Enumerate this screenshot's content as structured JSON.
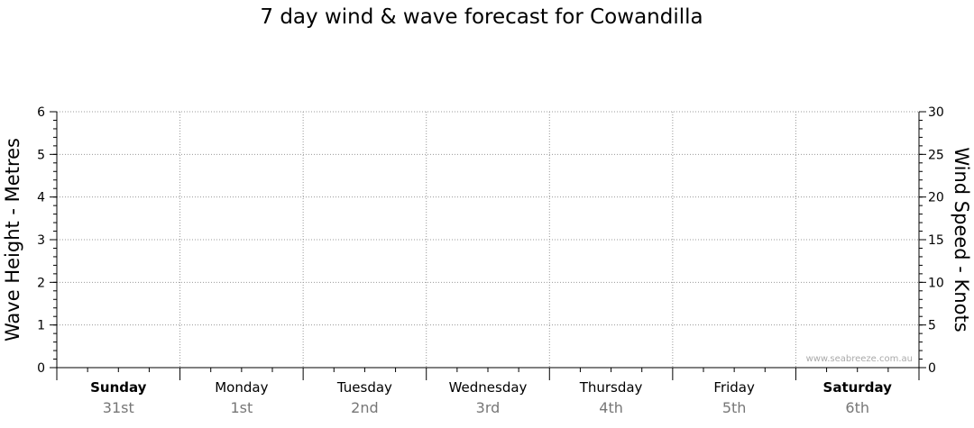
{
  "chart_data": {
    "type": "line",
    "title": "7 day wind & wave forecast for Cowandilla",
    "y_left": {
      "label": "Wave Height - Metres",
      "range": [
        0,
        6
      ],
      "ticks": [
        0,
        1,
        2,
        3,
        4,
        5,
        6
      ]
    },
    "y_right": {
      "label": "Wind Speed - Knots",
      "range": [
        0,
        30
      ],
      "ticks": [
        0,
        5,
        10,
        15,
        20,
        25,
        30
      ]
    },
    "days": [
      {
        "name": "Sunday",
        "date": "31st",
        "bold": true
      },
      {
        "name": "Monday",
        "date": "1st",
        "bold": false
      },
      {
        "name": "Tuesday",
        "date": "2nd",
        "bold": false
      },
      {
        "name": "Wednesday",
        "date": "3rd",
        "bold": false
      },
      {
        "name": "Thursday",
        "date": "4th",
        "bold": false
      },
      {
        "name": "Friday",
        "date": "5th",
        "bold": false
      },
      {
        "name": "Saturday",
        "date": "6th",
        "bold": true
      }
    ],
    "series": [],
    "grid": true,
    "watermark": "www.seabreeze.com.au"
  }
}
